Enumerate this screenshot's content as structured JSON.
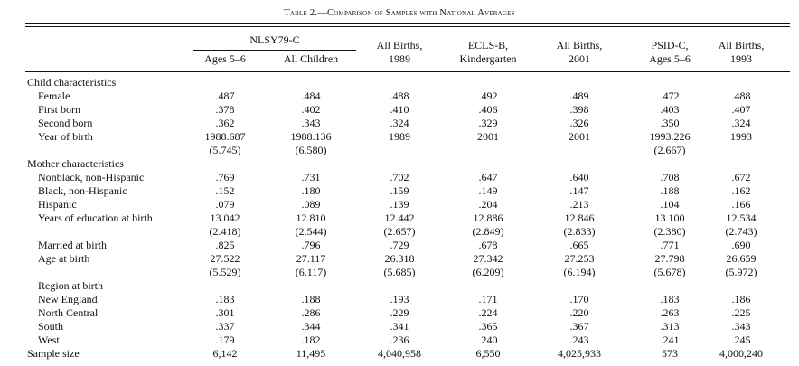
{
  "table": {
    "title_prefix": "Table 2.",
    "title_dash": "—",
    "title_rest": "Comparison of Samples with National Averages",
    "group_header": "NLSY79-C",
    "columns": [
      {
        "lines": [
          "Ages 5–6"
        ]
      },
      {
        "lines": [
          "All Children"
        ]
      },
      {
        "lines": [
          "All Births,",
          "1989"
        ]
      },
      {
        "lines": [
          "ECLS-B,",
          "Kindergarten"
        ]
      },
      {
        "lines": [
          "All Births,",
          "2001"
        ]
      },
      {
        "lines": [
          "PSID-C,",
          "Ages 5–6"
        ]
      },
      {
        "lines": [
          "All Births,",
          "1993"
        ]
      }
    ],
    "rows": [
      {
        "label": "Child characteristics",
        "indent": 0,
        "values": [
          "",
          "",
          "",
          "",
          "",
          "",
          ""
        ]
      },
      {
        "label": "Female",
        "indent": 1,
        "values": [
          ".487",
          ".484",
          ".488",
          ".492",
          ".489",
          ".472",
          ".488"
        ]
      },
      {
        "label": "First born",
        "indent": 1,
        "values": [
          ".378",
          ".402",
          ".410",
          ".406",
          ".398",
          ".403",
          ".407"
        ]
      },
      {
        "label": "Second born",
        "indent": 1,
        "values": [
          ".362",
          ".343",
          ".324",
          ".329",
          ".326",
          ".350",
          ".324"
        ]
      },
      {
        "label": "Year of birth",
        "indent": 1,
        "values": [
          "1988.687",
          "1988.136",
          "1989",
          "2001",
          "2001",
          "1993.226",
          "1993"
        ]
      },
      {
        "label": "",
        "indent": 1,
        "values": [
          "(5.745)",
          "(6.580)",
          "",
          "",
          "",
          "(2.667)",
          ""
        ]
      },
      {
        "label": "Mother characteristics",
        "indent": 0,
        "values": [
          "",
          "",
          "",
          "",
          "",
          "",
          ""
        ]
      },
      {
        "label": "Nonblack, non-Hispanic",
        "indent": 1,
        "values": [
          ".769",
          ".731",
          ".702",
          ".647",
          ".640",
          ".708",
          ".672"
        ]
      },
      {
        "label": "Black, non-Hispanic",
        "indent": 1,
        "values": [
          ".152",
          ".180",
          ".159",
          ".149",
          ".147",
          ".188",
          ".162"
        ]
      },
      {
        "label": "Hispanic",
        "indent": 1,
        "values": [
          ".079",
          ".089",
          ".139",
          ".204",
          ".213",
          ".104",
          ".166"
        ]
      },
      {
        "label": "Years of education at birth",
        "indent": 1,
        "values": [
          "13.042",
          "12.810",
          "12.442",
          "12.886",
          "12.846",
          "13.100",
          "12.534"
        ]
      },
      {
        "label": "",
        "indent": 1,
        "values": [
          "(2.418)",
          "(2.544)",
          "(2.657)",
          "(2.849)",
          "(2.833)",
          "(2.380)",
          "(2.743)"
        ]
      },
      {
        "label": "Married at birth",
        "indent": 1,
        "values": [
          ".825",
          ".796",
          ".729",
          ".678",
          ".665",
          ".771",
          ".690"
        ]
      },
      {
        "label": "Age at birth",
        "indent": 1,
        "values": [
          "27.522",
          "27.117",
          "26.318",
          "27.342",
          "27.253",
          "27.798",
          "26.659"
        ]
      },
      {
        "label": "",
        "indent": 1,
        "values": [
          "(5.529)",
          "(6.117)",
          "(5.685)",
          "(6.209)",
          "(6.194)",
          "(5.678)",
          "(5.972)"
        ]
      },
      {
        "label": "Region at birth",
        "indent": 1,
        "values": [
          "",
          "",
          "",
          "",
          "",
          "",
          ""
        ]
      },
      {
        "label": "New England",
        "indent": 1,
        "values": [
          ".183",
          ".188",
          ".193",
          ".171",
          ".170",
          ".183",
          ".186"
        ]
      },
      {
        "label": "North Central",
        "indent": 1,
        "values": [
          ".301",
          ".286",
          ".229",
          ".224",
          ".220",
          ".263",
          ".225"
        ]
      },
      {
        "label": "South",
        "indent": 1,
        "values": [
          ".337",
          ".344",
          ".341",
          ".365",
          ".367",
          ".313",
          ".343"
        ]
      },
      {
        "label": "West",
        "indent": 1,
        "values": [
          ".179",
          ".182",
          ".236",
          ".240",
          ".243",
          ".241",
          ".245"
        ]
      },
      {
        "label": "Sample size",
        "indent": 0,
        "values": [
          "6,142",
          "11,495",
          "4,040,958",
          "6,550",
          "4,025,933",
          "573",
          "4,000,240"
        ]
      }
    ]
  }
}
